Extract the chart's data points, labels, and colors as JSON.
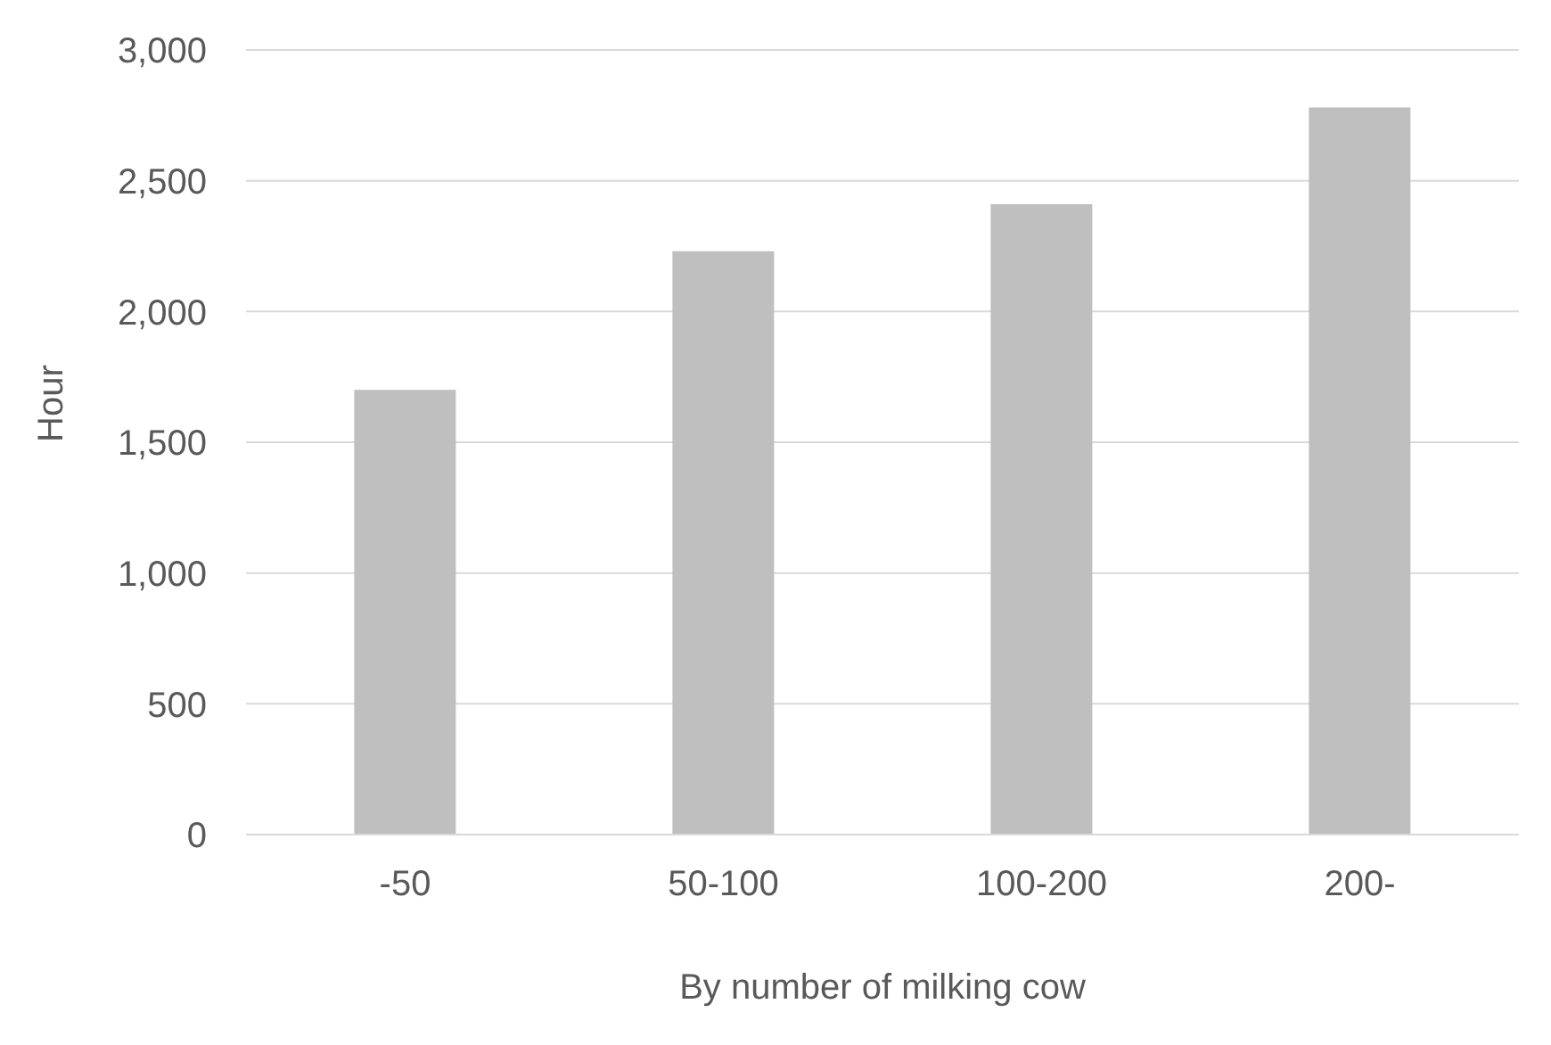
{
  "chart_data": {
    "type": "bar",
    "xlabel": "By number of milking cow",
    "ylabel": "Hour",
    "categories": [
      "-50",
      "50-100",
      "100-200",
      "200-"
    ],
    "values": [
      1700,
      2230,
      2410,
      2780
    ],
    "color": "#bfbfbf",
    "ylim": [
      0,
      3000
    ],
    "yticks": [
      0,
      500,
      {
        "value": 1000,
        "label": "1,000"
      },
      {
        "value": 1500,
        "label": "1,500"
      },
      {
        "value": 2000,
        "label": "2,000"
      },
      {
        "value": 2500,
        "label": "2,500"
      },
      {
        "value": 3000,
        "label": "3,000"
      }
    ],
    "grid": "y"
  }
}
